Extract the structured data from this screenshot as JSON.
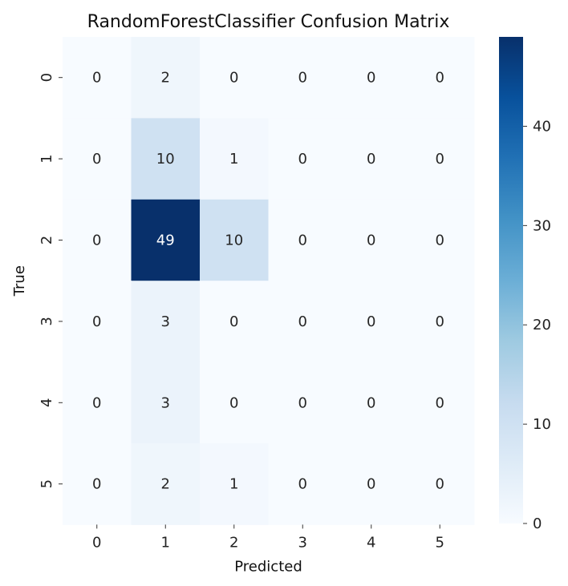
{
  "chart_data": {
    "type": "heatmap",
    "title": "RandomForestClassifier Confusion Matrix",
    "xlabel": "Predicted",
    "ylabel": "True",
    "x_categories": [
      "0",
      "1",
      "2",
      "3",
      "4",
      "5"
    ],
    "y_categories": [
      "0",
      "1",
      "2",
      "3",
      "4",
      "5"
    ],
    "values": [
      [
        0,
        2,
        0,
        0,
        0,
        0
      ],
      [
        0,
        10,
        1,
        0,
        0,
        0
      ],
      [
        0,
        49,
        10,
        0,
        0,
        0
      ],
      [
        0,
        3,
        0,
        0,
        0,
        0
      ],
      [
        0,
        3,
        0,
        0,
        0,
        0
      ],
      [
        0,
        2,
        1,
        0,
        0,
        0
      ]
    ],
    "colormap": "Blues",
    "vmin": 0,
    "vmax": 49,
    "colorbar": {
      "ticks": [
        0,
        10,
        20,
        30,
        40
      ]
    },
    "grid": false
  }
}
